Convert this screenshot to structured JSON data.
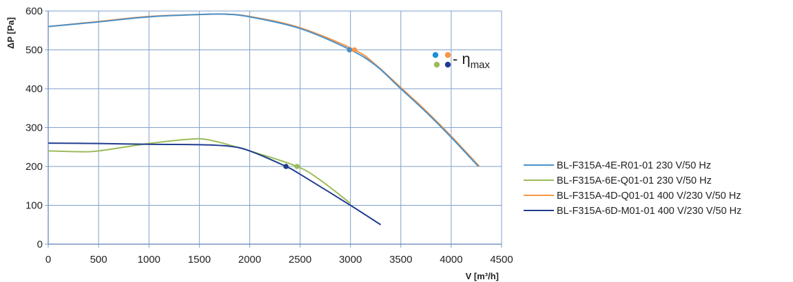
{
  "chart_data": {
    "type": "line",
    "xlabel": "V [m³/h]",
    "ylabel": "ΔP [Pa]",
    "xlim": [
      0,
      4500
    ],
    "ylim": [
      0,
      600
    ],
    "xticks": [
      "0",
      "500",
      "1000",
      "1500",
      "2000",
      "2500",
      "3000",
      "3500",
      "4000",
      "4500"
    ],
    "yticks": [
      "0",
      "100",
      "200",
      "300",
      "400",
      "500",
      "600"
    ],
    "grid": true,
    "legend_position": "right",
    "series": [
      {
        "name": "BL-F315A-4E-R01-01 230 V/50 Hz",
        "color": "#4a90c8",
        "x": [
          0,
          500,
          1000,
          1500,
          1750,
          2000,
          2500,
          3000,
          3250,
          3500,
          3750,
          4000,
          4270
        ],
        "y": [
          560,
          572,
          585,
          591,
          592,
          585,
          555,
          500,
          460,
          400,
          340,
          275,
          200
        ],
        "eta_max": {
          "x": 2990,
          "y": 500
        }
      },
      {
        "name": "BL-F315A-6E-Q01-01 230 V/50 Hz",
        "color": "#9bbb59",
        "x": [
          0,
          300,
          500,
          1000,
          1400,
          1600,
          2000,
          2470,
          2700,
          3000
        ],
        "y": [
          240,
          238,
          240,
          259,
          270,
          268,
          240,
          200,
          165,
          105
        ],
        "eta_max": {
          "x": 2470,
          "y": 200
        }
      },
      {
        "name": "BL-F315A-4D-Q01-01 400 V/230 V/50 Hz",
        "color": "#f79646",
        "x": [
          0,
          500,
          1000,
          1500,
          1750,
          2000,
          2500,
          3040,
          3250,
          3500,
          3750,
          4000,
          4280
        ],
        "y": [
          560,
          573,
          586,
          591,
          592,
          586,
          557,
          500,
          462,
          403,
          343,
          278,
          200
        ],
        "eta_max": {
          "x": 3040,
          "y": 500
        }
      },
      {
        "name": "BL-F315A-6D-M01-01 400 V/230 V/50 Hz",
        "color": "#1f3d8f",
        "x": [
          0,
          500,
          1000,
          1500,
          1800,
          2000,
          2360,
          2500,
          3000,
          3300
        ],
        "y": [
          260,
          259,
          257,
          256,
          252,
          240,
          200,
          180,
          100,
          50
        ],
        "eta_max": {
          "x": 2360,
          "y": 200
        }
      }
    ],
    "eta_legend": {
      "label_prefix": "- η",
      "label_sub": "max",
      "dot_colors": [
        "#1a8fd6",
        "#f79646",
        "#9bbb59",
        "#1f3d8f"
      ]
    }
  }
}
